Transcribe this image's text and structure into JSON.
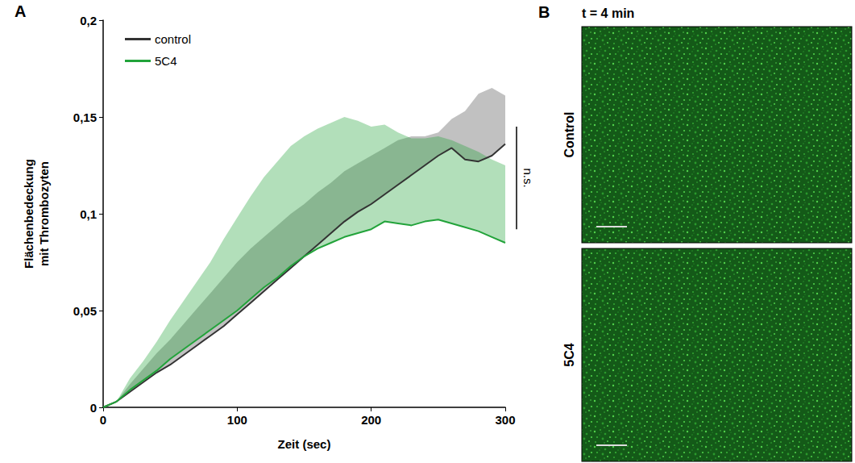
{
  "chart_data": {
    "type": "line",
    "panel": "A",
    "x_label": "Zeit (sec)",
    "y_label": "Flächenbedeckung mit Thrombozyten",
    "x": [
      0,
      10,
      20,
      30,
      40,
      50,
      60,
      70,
      80,
      90,
      100,
      110,
      120,
      130,
      140,
      150,
      160,
      170,
      180,
      190,
      200,
      210,
      220,
      230,
      240,
      250,
      260,
      270,
      280,
      290,
      300
    ],
    "series": [
      {
        "name": "control",
        "color": "#333333",
        "values": [
          0,
          0.003,
          0.008,
          0.013,
          0.018,
          0.022,
          0.027,
          0.032,
          0.037,
          0.042,
          0.048,
          0.054,
          0.06,
          0.066,
          0.072,
          0.078,
          0.084,
          0.09,
          0.096,
          0.101,
          0.105,
          0.11,
          0.115,
          0.12,
          0.125,
          0.13,
          0.134,
          0.128,
          0.127,
          0.13,
          0.136
        ],
        "error": [
          0,
          0,
          0.004,
          0.007,
          0.01,
          0.013,
          0.016,
          0.019,
          0.022,
          0.025,
          0.027,
          0.028,
          0.028,
          0.028,
          0.028,
          0.027,
          0.027,
          0.026,
          0.026,
          0.025,
          0.025,
          0.024,
          0.023,
          0.02,
          0.015,
          0.012,
          0.015,
          0.025,
          0.035,
          0.035,
          0.025
        ]
      },
      {
        "name": "5C4",
        "color": "#22a33a",
        "values": [
          0,
          0.003,
          0.009,
          0.014,
          0.019,
          0.025,
          0.03,
          0.035,
          0.04,
          0.045,
          0.05,
          0.056,
          0.062,
          0.067,
          0.073,
          0.078,
          0.082,
          0.085,
          0.088,
          0.09,
          0.092,
          0.096,
          0.095,
          0.094,
          0.096,
          0.097,
          0.095,
          0.093,
          0.091,
          0.088,
          0.085
        ],
        "error": [
          0,
          0,
          0.006,
          0.01,
          0.015,
          0.02,
          0.025,
          0.03,
          0.035,
          0.042,
          0.048,
          0.053,
          0.057,
          0.06,
          0.062,
          0.062,
          0.062,
          0.062,
          0.062,
          0.058,
          0.053,
          0.05,
          0.047,
          0.045,
          0.043,
          0.043,
          0.043,
          0.042,
          0.041,
          0.04,
          0.04
        ]
      }
    ],
    "xlim": [
      0,
      300
    ],
    "xticks": [
      0,
      100,
      200,
      300
    ],
    "ylim": [
      0,
      0.2
    ],
    "yticks": [
      0,
      {
        "value": 0.05,
        "label": "0,05"
      },
      {
        "value": 0.1,
        "label": "0,1"
      },
      {
        "value": 0.15,
        "label": "0,15"
      },
      {
        "value": 0.2,
        "label": "0,2"
      }
    ],
    "grid": false,
    "legend": "top-left",
    "annotations": [
      {
        "text": "n.s.",
        "y_range": [
          0.092,
          0.145
        ]
      }
    ]
  },
  "image_panel": {
    "label": "B",
    "title": "t = 4 min",
    "rows": [
      "Control",
      "5C4"
    ]
  }
}
